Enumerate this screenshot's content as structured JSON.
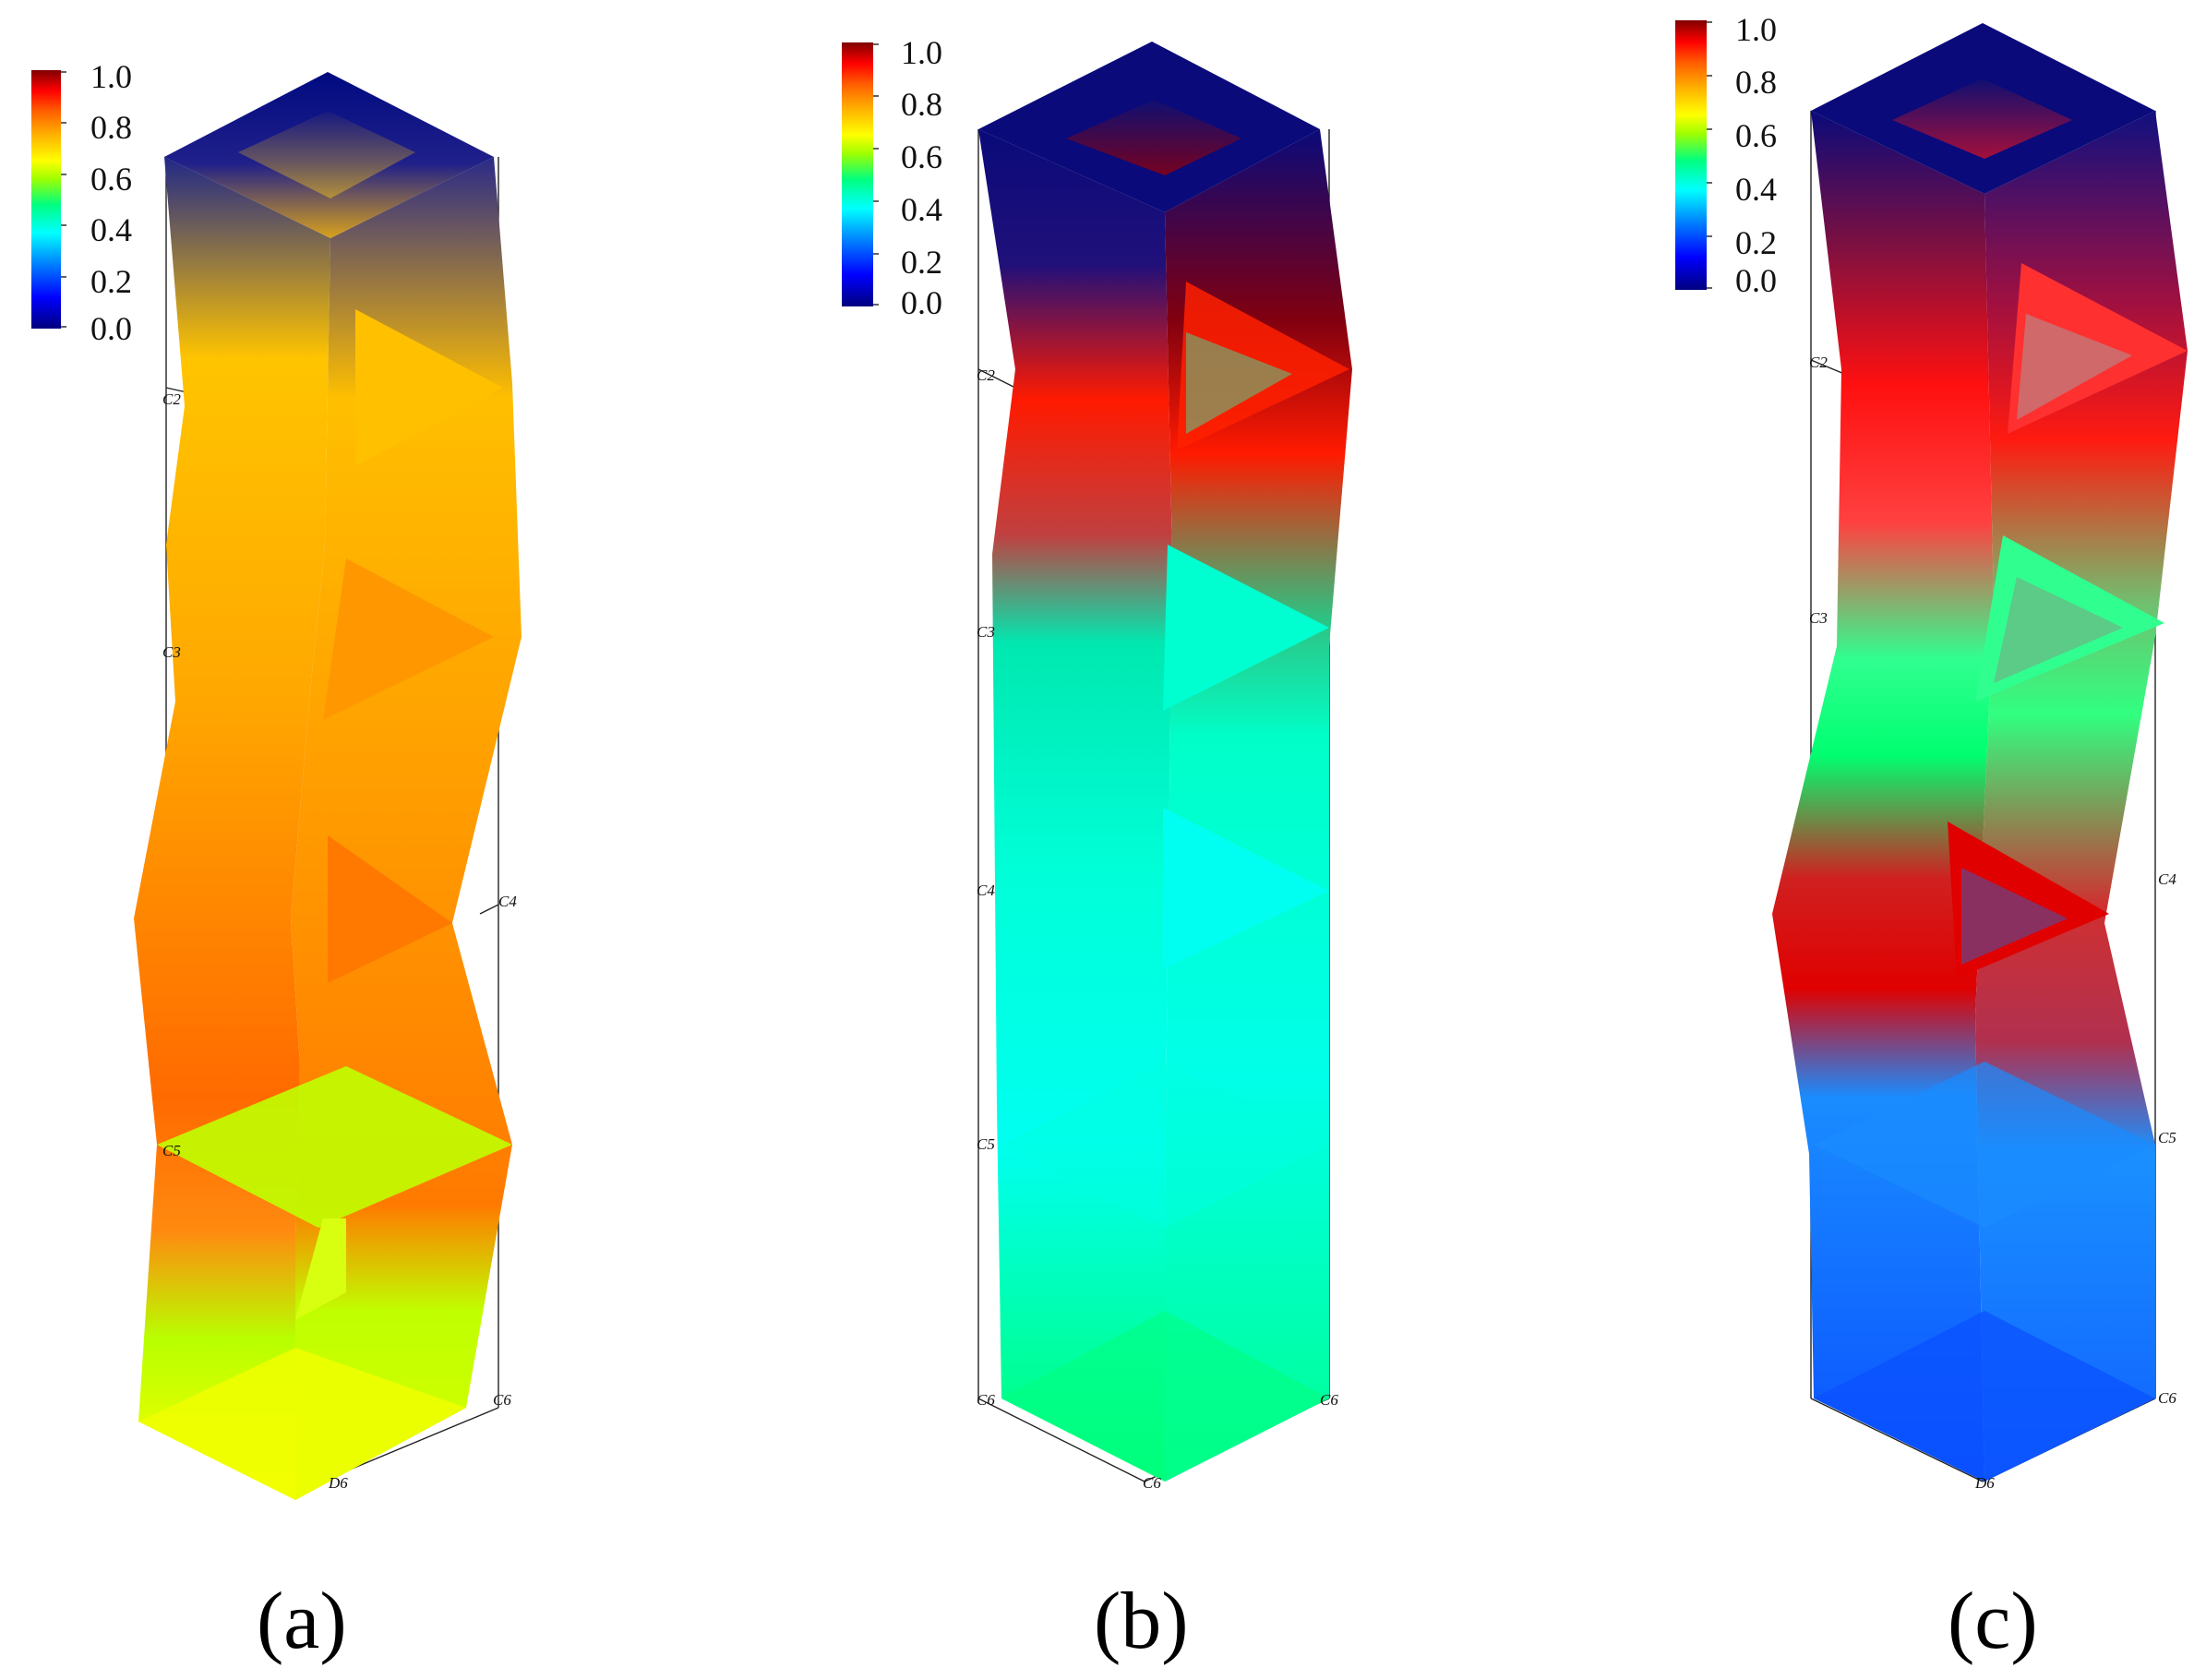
{
  "colormap": {
    "stops": [
      "#00007f",
      "#0000ff",
      "#0080ff",
      "#00ffff",
      "#00ff80",
      "#80ff00",
      "#ffff00",
      "#ffb000",
      "#ff6000",
      "#ff0000",
      "#7f0000"
    ],
    "tick_labels": [
      "1.0",
      "0.8",
      "0.6",
      "0.4",
      "0.2",
      "0.0"
    ]
  },
  "panels": [
    {
      "caption": "(a)",
      "node_labels": [
        "C2",
        "C3",
        "C4",
        "C5",
        "C6",
        "D6"
      ],
      "face_colors": {
        "top": "#101a80",
        "upper": "#ffbf00",
        "middle": "#ff9200",
        "lower": "#ff6a00",
        "bottom_block": "#c8ff00",
        "base": "#f2ff00"
      }
    },
    {
      "caption": "(b)",
      "node_labels": [
        "C2",
        "C3",
        "C4",
        "C5",
        "C6",
        "C6",
        "C6"
      ],
      "face_colors": {
        "top": "#0a0a7a",
        "upper": "#ff1a00",
        "middle": "#00ffd0",
        "lower": "#00fff0",
        "bottom_block": "#00ffd8",
        "base": "#00ff70"
      }
    },
    {
      "caption": "(c)",
      "node_labels": [
        "C2",
        "C3",
        "C4",
        "C5",
        "C6",
        "D6"
      ],
      "face_colors": {
        "top": "#0a0a7a",
        "upper": "#ff1010",
        "middle": "#40ff90",
        "lower": "#e00000",
        "bottom_block": "#1a8cff",
        "base": "#0a50ff"
      }
    }
  ]
}
